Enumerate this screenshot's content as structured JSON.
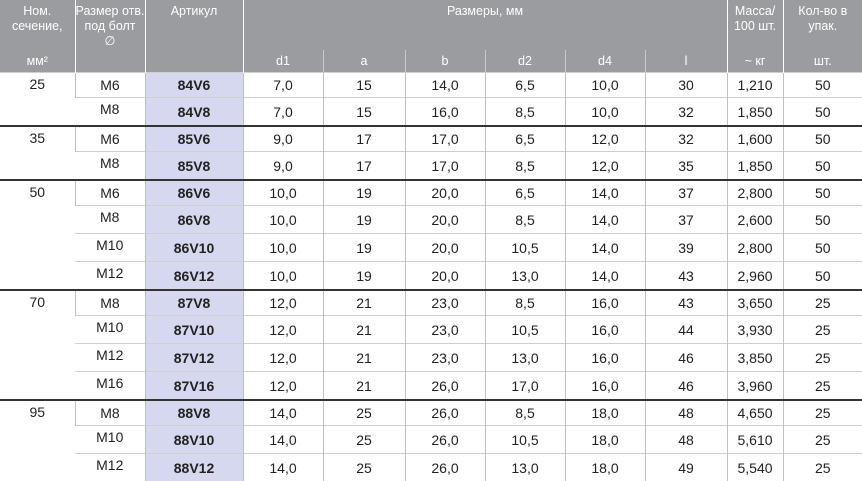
{
  "header": {
    "nom": "Ном. сечение,",
    "nom_unit": "мм²",
    "bolt": "Размер отв. под болт",
    "bolt_sym": "∅",
    "article": "Артикул",
    "dims": "Размеры, мм",
    "dim_cols": [
      "d1",
      "a",
      "b",
      "d2",
      "d4",
      "l"
    ],
    "mass": "Масса/ 100 шт.",
    "mass_unit": "~ кг",
    "qty": "Кол-во в упак.",
    "qty_unit": "шт."
  },
  "groups": [
    {
      "section": "25",
      "rows": [
        [
          "M6",
          "84V6",
          "7,0",
          "15",
          "14,0",
          "6,5",
          "10,0",
          "30",
          "1,210",
          "50"
        ],
        [
          "M8",
          "84V8",
          "7,0",
          "15",
          "16,0",
          "8,5",
          "10,0",
          "32",
          "1,850",
          "50"
        ]
      ]
    },
    {
      "section": "35",
      "rows": [
        [
          "M6",
          "85V6",
          "9,0",
          "17",
          "17,0",
          "6,5",
          "12,0",
          "32",
          "1,600",
          "50"
        ],
        [
          "M8",
          "85V8",
          "9,0",
          "17",
          "17,0",
          "8,5",
          "12,0",
          "35",
          "1,850",
          "50"
        ]
      ]
    },
    {
      "section": "50",
      "rows": [
        [
          "M6",
          "86V6",
          "10,0",
          "19",
          "20,0",
          "6,5",
          "14,0",
          "37",
          "2,800",
          "50"
        ],
        [
          "M8",
          "86V8",
          "10,0",
          "19",
          "20,0",
          "8,5",
          "14,0",
          "37",
          "2,600",
          "50"
        ],
        [
          "M10",
          "86V10",
          "10,0",
          "19",
          "20,0",
          "10,5",
          "14,0",
          "39",
          "2,800",
          "50"
        ],
        [
          "M12",
          "86V12",
          "10,0",
          "19",
          "20,0",
          "13,0",
          "14,0",
          "43",
          "2,960",
          "50"
        ]
      ]
    },
    {
      "section": "70",
      "rows": [
        [
          "M8",
          "87V8",
          "12,0",
          "21",
          "23,0",
          "8,5",
          "16,0",
          "43",
          "3,650",
          "25"
        ],
        [
          "M10",
          "87V10",
          "12,0",
          "21",
          "23,0",
          "10,5",
          "16,0",
          "44",
          "3,930",
          "25"
        ],
        [
          "M12",
          "87V12",
          "12,0",
          "21",
          "23,0",
          "13,0",
          "16,0",
          "46",
          "3,850",
          "25"
        ],
        [
          "M16",
          "87V16",
          "12,0",
          "21",
          "26,0",
          "17,0",
          "16,0",
          "46",
          "3,960",
          "25"
        ]
      ]
    },
    {
      "section": "95",
      "rows": [
        [
          "M8",
          "88V8",
          "14,0",
          "25",
          "26,0",
          "8,5",
          "18,0",
          "48",
          "4,650",
          "25"
        ],
        [
          "M10",
          "88V10",
          "14,0",
          "25",
          "26,0",
          "10,5",
          "18,0",
          "48",
          "5,610",
          "25"
        ],
        [
          "M12",
          "88V12",
          "14,0",
          "25",
          "26,0",
          "13,0",
          "18,0",
          "49",
          "5,540",
          "25"
        ]
      ]
    }
  ],
  "colors": {
    "header_bg": "#9b9ca0",
    "article_bg": "#d6d8ef"
  }
}
